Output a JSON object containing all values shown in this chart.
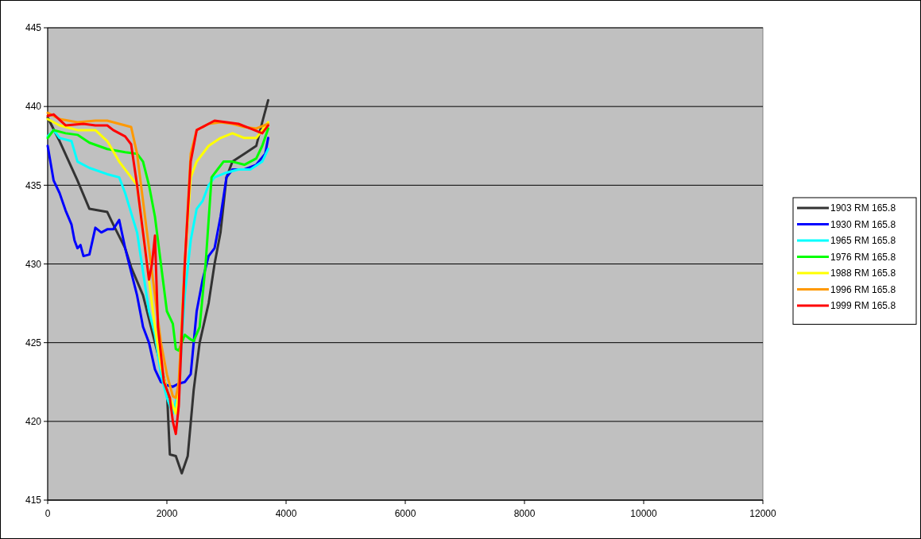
{
  "chart_data": {
    "type": "line",
    "xlim": [
      0,
      12000
    ],
    "xticks": [
      0,
      2000,
      4000,
      6000,
      8000,
      10000,
      12000
    ],
    "ylim": [
      415,
      445
    ],
    "yticks": [
      415,
      420,
      425,
      430,
      435,
      440,
      445
    ],
    "grid": "y",
    "legend": "right",
    "series": [
      {
        "name": "1903 RM 165.8",
        "color": "#333333",
        "x": [
          0,
          200,
          500,
          700,
          1000,
          1100,
          1300,
          1400,
          1600,
          1800,
          2000,
          2050,
          2150,
          2250,
          2350,
          2450,
          2550,
          2700,
          2800,
          2900,
          3000,
          3100,
          3300,
          3500,
          3600,
          3700
        ],
        "values": [
          439.3,
          437.8,
          435.3,
          433.5,
          433.3,
          432.5,
          431,
          429.8,
          428,
          425,
          422,
          417.9,
          417.8,
          416.7,
          417.8,
          422,
          425,
          427.5,
          430,
          432,
          435.5,
          436.5,
          437,
          437.5,
          439,
          440.4
        ]
      },
      {
        "name": "1930 RM 165.8",
        "color": "#0000ff",
        "x": [
          0,
          100,
          200,
          300,
          400,
          450,
          500,
          550,
          600,
          700,
          800,
          900,
          1000,
          1100,
          1200,
          1300,
          1400,
          1500,
          1600,
          1700,
          1800,
          1900,
          2000,
          2100,
          2200,
          2300,
          2400,
          2500,
          2600,
          2700,
          2800,
          2900,
          3000,
          3100,
          3300,
          3500,
          3650,
          3700
        ],
        "values": [
          437.5,
          435.3,
          434.5,
          433.4,
          432.5,
          431.5,
          431,
          431.2,
          430.5,
          430.6,
          432.3,
          432,
          432.2,
          432.2,
          432.8,
          431,
          429.5,
          428,
          426,
          425,
          423.3,
          422.5,
          422.3,
          422.2,
          422.4,
          422.5,
          423,
          427,
          429,
          430.5,
          431,
          433,
          435.5,
          436,
          436,
          436.3,
          437,
          438
        ]
      },
      {
        "name": "1965 RM 165.8",
        "color": "#00ffff",
        "x": [
          0,
          100,
          200,
          400,
          500,
          700,
          1000,
          1200,
          1300,
          1500,
          1600,
          1700,
          1800,
          1900,
          2000,
          2100,
          2200,
          2300,
          2400,
          2500,
          2600,
          2700,
          2800,
          3000,
          3200,
          3400,
          3600,
          3700
        ],
        "values": [
          438.1,
          438.5,
          438,
          437.8,
          436.5,
          436.1,
          435.7,
          435.5,
          434.5,
          432,
          429.5,
          427,
          425.5,
          423,
          421.5,
          420.5,
          422,
          428,
          431.5,
          433.5,
          434,
          435,
          435.5,
          435.8,
          436,
          436,
          436.5,
          437.3
        ]
      },
      {
        "name": "1976 RM 165.8",
        "color": "#00ff00",
        "x": [
          0,
          100,
          300,
          500,
          700,
          1000,
          1300,
          1500,
          1600,
          1700,
          1800,
          1900,
          2000,
          2100,
          2150,
          2200,
          2300,
          2400,
          2450,
          2550,
          2650,
          2750,
          2850,
          2950,
          3100,
          3300,
          3500,
          3600,
          3700
        ],
        "values": [
          438,
          438.5,
          438.3,
          438.2,
          437.7,
          437.3,
          437.1,
          437,
          436.5,
          435,
          433,
          430,
          427,
          426.2,
          424.6,
          424.5,
          425.5,
          425.2,
          425.1,
          426,
          430,
          435.5,
          436,
          436.5,
          436.5,
          436.3,
          436.7,
          437.5,
          438.6
        ]
      },
      {
        "name": "1988 RM 165.8",
        "color": "#ffff00",
        "x": [
          0,
          200,
          500,
          800,
          1000,
          1200,
          1400,
          1500,
          1600,
          1700,
          1800,
          1900,
          2000,
          2100,
          2150,
          2200,
          2300,
          2400,
          2500,
          2700,
          2900,
          3100,
          3300,
          3500,
          3700
        ],
        "values": [
          439.2,
          438.8,
          438.5,
          438.5,
          437.8,
          436.5,
          435.5,
          435,
          432,
          429,
          426,
          423.5,
          422,
          421,
          420.5,
          422,
          430,
          435.5,
          436.5,
          437.5,
          438,
          438.3,
          438,
          438,
          439
        ]
      },
      {
        "name": "1996 RM 165.8",
        "color": "#ff9900",
        "x": [
          0,
          200,
          500,
          800,
          1000,
          1200,
          1400,
          1500,
          1600,
          1700,
          1800,
          1900,
          2000,
          2100,
          2150,
          2200,
          2300,
          2400,
          2500,
          2700,
          2900,
          3100,
          3300,
          3500,
          3700
        ],
        "values": [
          439.6,
          439.2,
          439,
          439.1,
          439.1,
          438.9,
          438.7,
          437,
          434,
          431,
          428,
          425,
          423,
          421.6,
          421.5,
          422.5,
          430,
          437,
          438.5,
          438.9,
          439,
          438.9,
          438.7,
          438.6,
          438.9
        ]
      },
      {
        "name": "1999 RM 165.8",
        "color": "#ff0000",
        "x": [
          0,
          100,
          300,
          600,
          800,
          1000,
          1100,
          1300,
          1400,
          1500,
          1600,
          1700,
          1750,
          1800,
          1850,
          1950,
          2050,
          2100,
          2150,
          2200,
          2300,
          2400,
          2500,
          2700,
          2800,
          3000,
          3200,
          3400,
          3600,
          3700
        ],
        "values": [
          439.4,
          439.5,
          438.8,
          438.9,
          438.8,
          438.8,
          438.5,
          438.1,
          437.6,
          435,
          432,
          429,
          430,
          431.8,
          426,
          422.5,
          421.5,
          420,
          419.2,
          421,
          430,
          436.5,
          438.5,
          438.9,
          439.1,
          439,
          438.9,
          438.6,
          438.3,
          438.8
        ]
      }
    ]
  }
}
